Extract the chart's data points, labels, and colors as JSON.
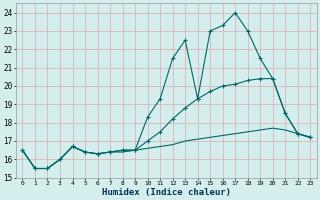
{
  "xlabel": "Humidex (Indice chaleur)",
  "bg_color": "#d4eeee",
  "grid_color": "#ddaaaa",
  "line_color": "#006666",
  "xlim": [
    -0.5,
    23.5
  ],
  "ylim": [
    15.0,
    24.5
  ],
  "yticks": [
    15,
    16,
    17,
    18,
    19,
    20,
    21,
    22,
    23,
    24
  ],
  "xticks": [
    0,
    1,
    2,
    3,
    4,
    5,
    6,
    7,
    8,
    9,
    10,
    11,
    12,
    13,
    14,
    15,
    16,
    17,
    18,
    19,
    20,
    21,
    22,
    23
  ],
  "line1_x": [
    0,
    1,
    2,
    3,
    4,
    5,
    6,
    7,
    8,
    9,
    10,
    11,
    12,
    13,
    14,
    15,
    16,
    17,
    18,
    19,
    20,
    21,
    22,
    23
  ],
  "line1_y": [
    16.5,
    15.5,
    15.5,
    16.0,
    16.7,
    16.4,
    16.3,
    16.4,
    16.5,
    16.5,
    18.3,
    19.3,
    21.5,
    22.5,
    19.3,
    23.0,
    23.3,
    24.0,
    23.0,
    21.5,
    20.4,
    18.5,
    17.4,
    17.2
  ],
  "line2_x": [
    0,
    1,
    2,
    3,
    4,
    5,
    6,
    7,
    8,
    9,
    10,
    11,
    12,
    13,
    14,
    15,
    16,
    17,
    18,
    19,
    20,
    21,
    22,
    23
  ],
  "line2_y": [
    16.5,
    15.5,
    15.5,
    16.0,
    16.7,
    16.4,
    16.3,
    16.4,
    16.5,
    16.5,
    17.0,
    17.5,
    18.2,
    18.8,
    19.3,
    19.7,
    20.0,
    20.1,
    20.3,
    20.4,
    20.4,
    18.5,
    17.4,
    17.2
  ],
  "line3_x": [
    0,
    1,
    2,
    3,
    4,
    5,
    6,
    7,
    8,
    9,
    10,
    11,
    12,
    13,
    14,
    15,
    16,
    17,
    18,
    19,
    20,
    21,
    22,
    23
  ],
  "line3_y": [
    16.5,
    15.5,
    15.5,
    16.0,
    16.7,
    16.4,
    16.3,
    16.4,
    16.4,
    16.5,
    16.6,
    16.7,
    16.8,
    17.0,
    17.1,
    17.2,
    17.3,
    17.4,
    17.5,
    17.6,
    17.7,
    17.6,
    17.4,
    17.2
  ]
}
